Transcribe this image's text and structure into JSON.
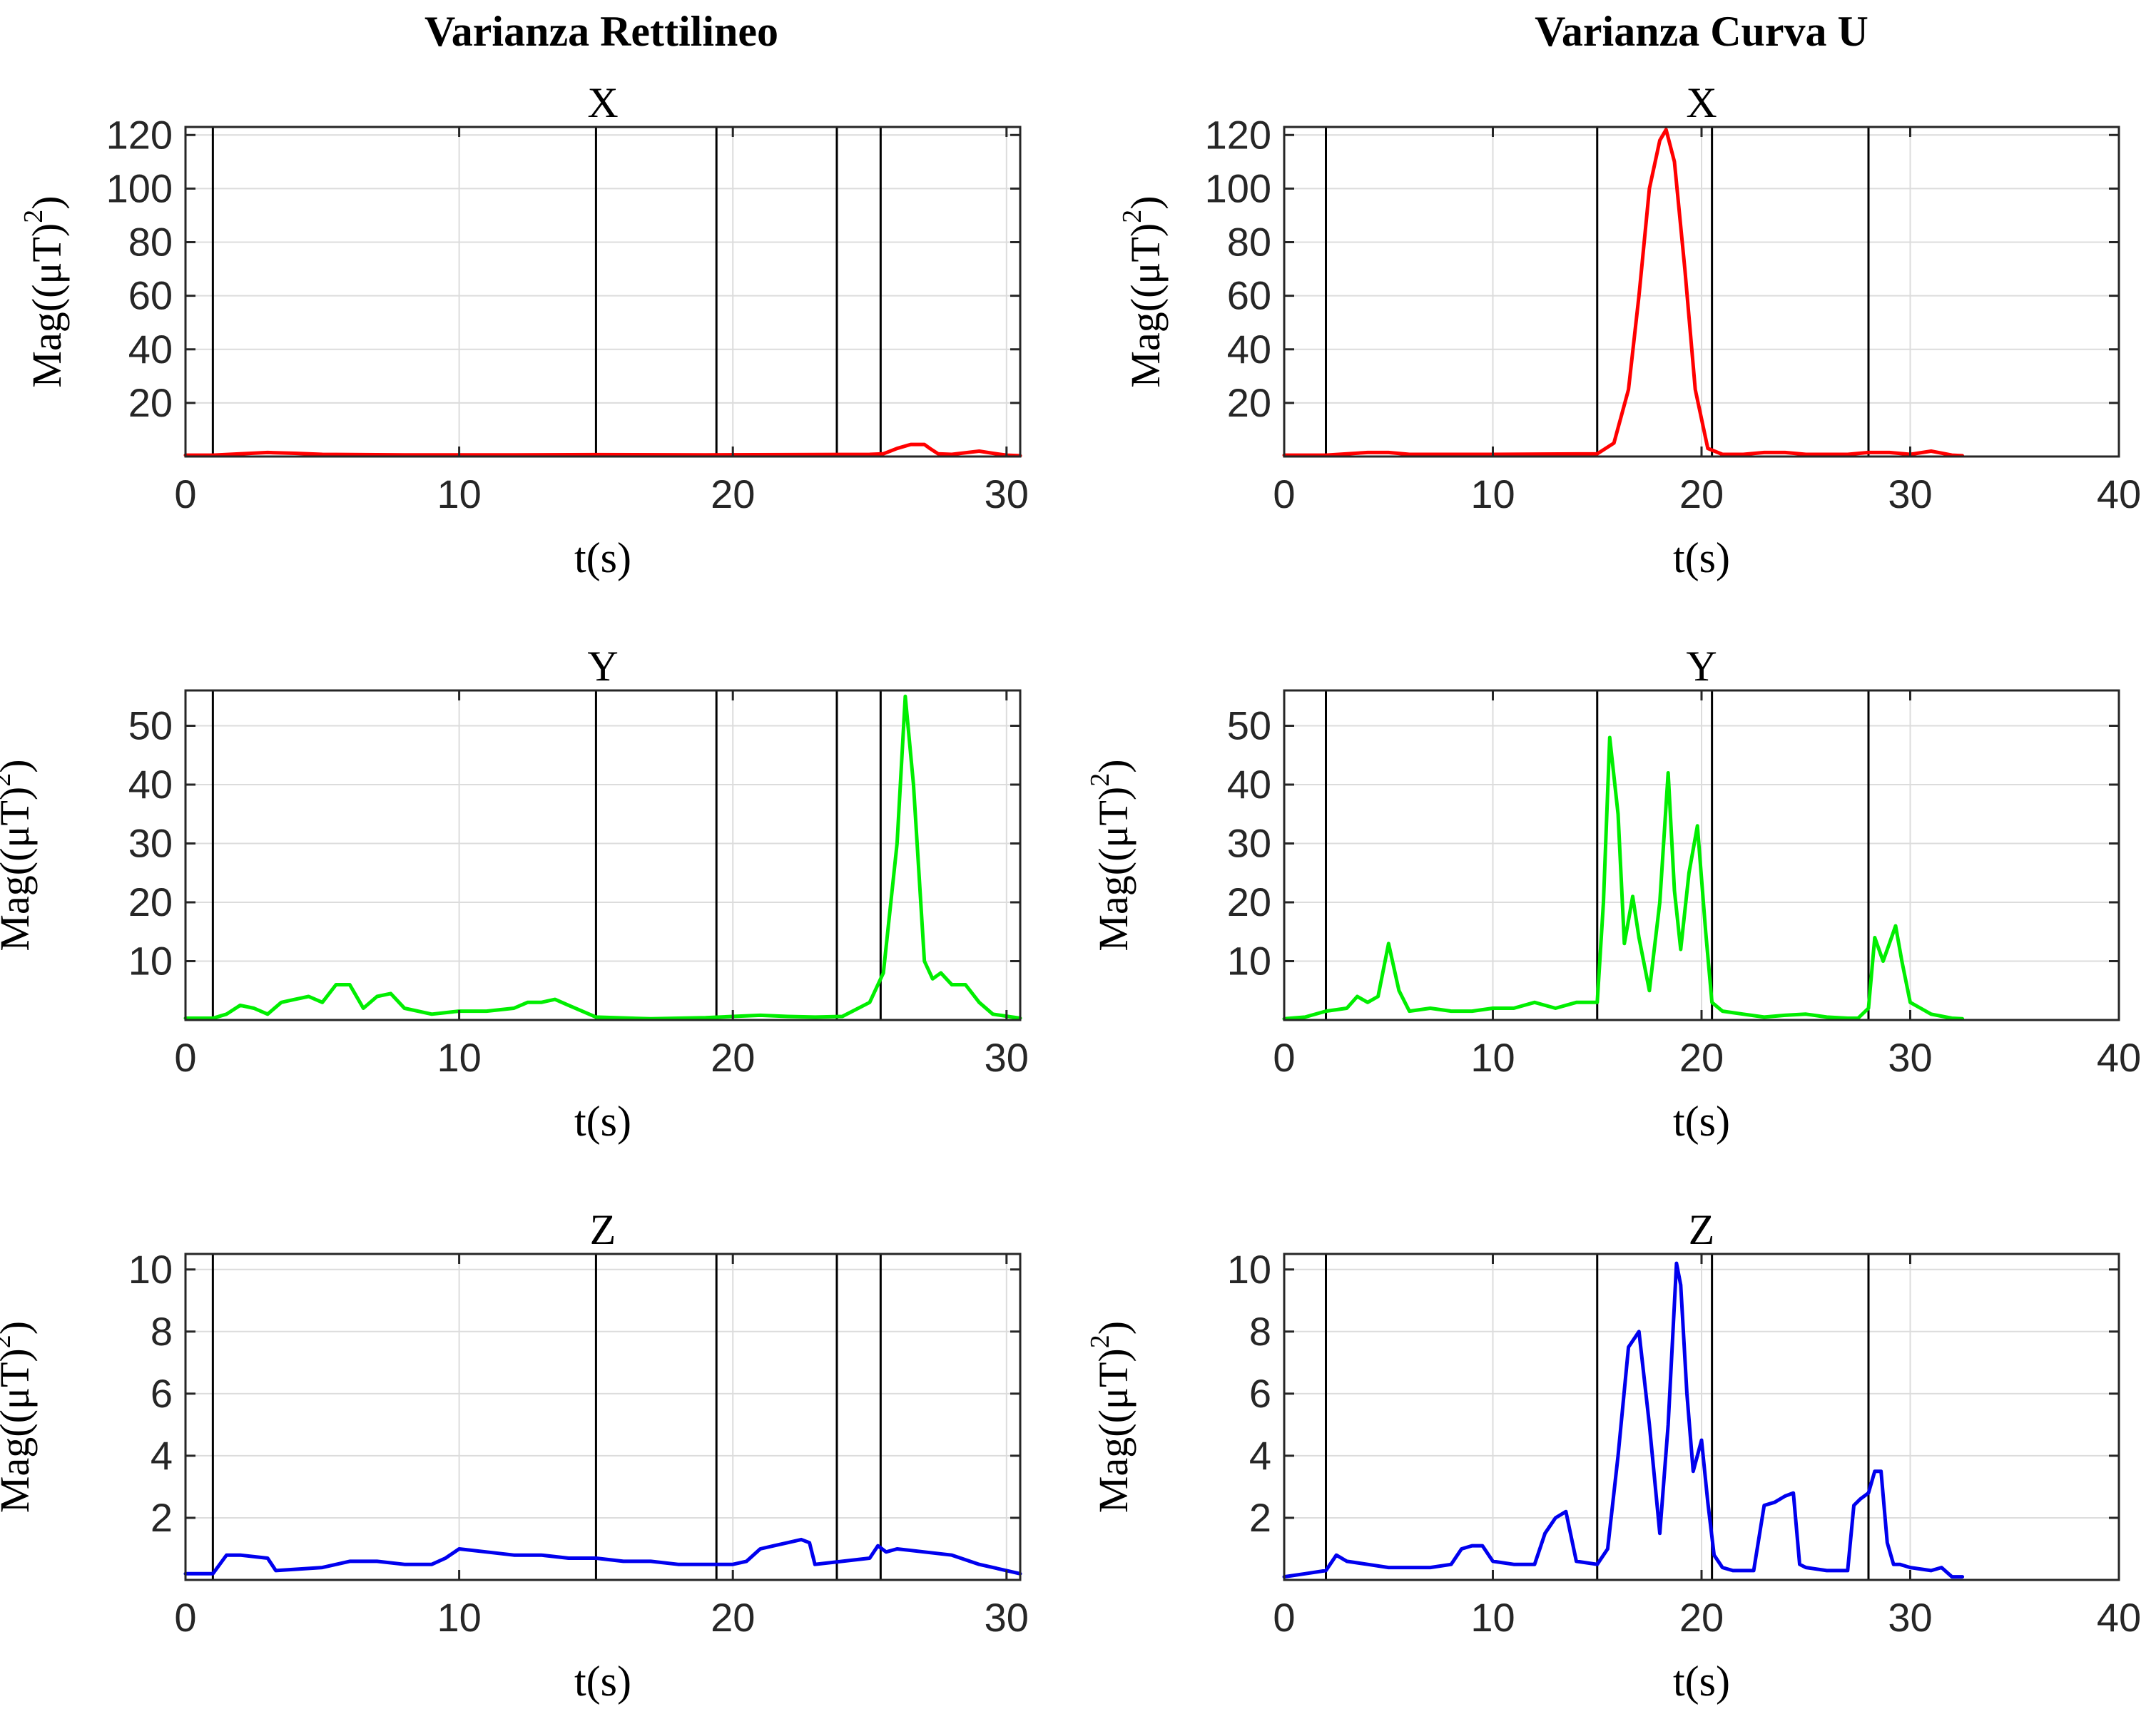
{
  "figure": {
    "column_titles": [
      "Varianza Rettilineo",
      "Varianza Curva U"
    ]
  },
  "chart_data": [
    {
      "type": "line",
      "column": "Varianza Rettilineo",
      "title": "X",
      "xlabel": "t(s)",
      "ylabel": "Mag((μT)",
      "ylabel_superscript": "2",
      "ylabel_suffix": ")",
      "xlim": [
        0,
        30.5
      ],
      "ylim": [
        0,
        123
      ],
      "xticks": [
        0,
        10,
        20,
        30
      ],
      "yticks": [
        20,
        40,
        60,
        80,
        100,
        120
      ],
      "grid": true,
      "event_lines": [
        1,
        15,
        19.4,
        23.8,
        25.4
      ],
      "series": [
        {
          "color": "#ff0000",
          "x": [
            0,
            1,
            2,
            3,
            4,
            5,
            8,
            12,
            15,
            19,
            22,
            25,
            25.5,
            26,
            26.5,
            27,
            27.2,
            27.5,
            28,
            29,
            29.5,
            30,
            30.5
          ],
          "y": [
            0.5,
            0.5,
            1,
            1.5,
            1.2,
            0.8,
            0.6,
            0.6,
            0.7,
            0.6,
            0.7,
            0.8,
            1,
            3,
            4.5,
            4.5,
            3,
            1,
            0.8,
            2,
            1.2,
            0.5,
            0.3
          ]
        }
      ]
    },
    {
      "type": "line",
      "column": "Varianza Curva U",
      "title": "X",
      "xlabel": "t(s)",
      "ylabel": "Mag((μT)",
      "ylabel_superscript": "2",
      "ylabel_suffix": ")",
      "xlim": [
        0,
        40
      ],
      "ylim": [
        0,
        123
      ],
      "xticks": [
        0,
        10,
        20,
        30,
        40
      ],
      "yticks": [
        20,
        40,
        60,
        80,
        100,
        120
      ],
      "grid": true,
      "event_lines": [
        2,
        15,
        20.5,
        28
      ],
      "series": [
        {
          "color": "#ff0000",
          "x": [
            0,
            2,
            4,
            5,
            6,
            10,
            15,
            15.8,
            16.5,
            17,
            17.5,
            18,
            18.3,
            18.7,
            19.2,
            19.7,
            20.3,
            21,
            22,
            23,
            24,
            25,
            27,
            28,
            29,
            30,
            31,
            32,
            32.5
          ],
          "y": [
            0.5,
            0.5,
            1.5,
            1.5,
            0.8,
            0.8,
            1,
            5,
            25,
            60,
            100,
            118,
            122,
            110,
            70,
            25,
            3,
            0.8,
            0.8,
            1.5,
            1.5,
            0.8,
            0.8,
            1.5,
            1.5,
            0.8,
            2,
            0.5,
            0.3
          ]
        }
      ]
    },
    {
      "type": "line",
      "column": "Varianza Rettilineo",
      "title": "Y",
      "xlabel": "t(s)",
      "ylabel": "Mag((μT)",
      "ylabel_superscript": "2",
      "ylabel_suffix": ")",
      "xlim": [
        0,
        30.5
      ],
      "ylim": [
        0,
        56
      ],
      "xticks": [
        0,
        10,
        20,
        30
      ],
      "yticks": [
        10,
        20,
        30,
        40,
        50
      ],
      "grid": true,
      "event_lines": [
        1,
        15,
        19.4,
        23.8,
        25.4
      ],
      "series": [
        {
          "color": "#00ee00",
          "x": [
            0,
            1,
            1.5,
            2,
            2.5,
            3,
            3.5,
            4,
            4.5,
            5,
            5.5,
            6,
            6.5,
            7,
            7.5,
            8,
            9,
            10,
            11,
            12,
            12.5,
            13,
            13.5,
            14,
            15,
            17,
            19,
            20,
            21,
            22,
            23,
            24,
            25,
            25.5,
            26,
            26.3,
            26.6,
            27,
            27.3,
            27.6,
            28,
            28.5,
            29,
            29.5,
            30.5
          ],
          "y": [
            0.3,
            0.3,
            1,
            2.5,
            2,
            1,
            3,
            3.5,
            4,
            3,
            6,
            6,
            2,
            4,
            4.5,
            2,
            1,
            1.5,
            1.5,
            2,
            3,
            3,
            3.5,
            2.5,
            0.5,
            0.2,
            0.4,
            0.6,
            0.8,
            0.6,
            0.5,
            0.6,
            3,
            8,
            30,
            55,
            40,
            10,
            7,
            8,
            6,
            6,
            3,
            1,
            0.3
          ]
        }
      ]
    },
    {
      "type": "line",
      "column": "Varianza Curva U",
      "title": "Y",
      "xlabel": "t(s)",
      "ylabel": "Mag((μT)",
      "ylabel_superscript": "2",
      "ylabel_suffix": ")",
      "xlim": [
        0,
        40
      ],
      "ylim": [
        0,
        56
      ],
      "xticks": [
        0,
        10,
        20,
        30,
        40
      ],
      "yticks": [
        10,
        20,
        30,
        40,
        50
      ],
      "grid": true,
      "event_lines": [
        2,
        15,
        20.5,
        28
      ],
      "series": [
        {
          "color": "#00ee00",
          "x": [
            0,
            1,
            2,
            3,
            3.5,
            4,
            4.5,
            5,
            5.5,
            6,
            7,
            8,
            9,
            10,
            11,
            12,
            13,
            14,
            15,
            15.3,
            15.6,
            16,
            16.3,
            16.7,
            17,
            17.5,
            18,
            18.4,
            18.7,
            19,
            19.4,
            19.8,
            20.2,
            20.5,
            21,
            22,
            23,
            24,
            25,
            26,
            27,
            27.5,
            28,
            28.3,
            28.7,
            29,
            29.3,
            29.6,
            30,
            30.5,
            31,
            32,
            32.5
          ],
          "y": [
            0.2,
            0.5,
            1.5,
            2,
            4,
            3,
            4,
            13,
            5,
            1.5,
            2,
            1.5,
            1.5,
            2,
            2,
            3,
            2,
            3,
            3,
            20,
            48,
            35,
            13,
            21,
            14,
            5,
            20,
            42,
            22,
            12,
            25,
            33,
            15,
            3,
            1.5,
            1,
            0.5,
            0.8,
            1,
            0.5,
            0.3,
            0.3,
            2,
            14,
            10,
            13,
            16,
            10,
            3,
            2,
            1,
            0.3,
            0.2
          ]
        }
      ]
    },
    {
      "type": "line",
      "column": "Varianza Rettilineo",
      "title": "Z",
      "xlabel": "t(s)",
      "ylabel": "Mag((μT)",
      "ylabel_superscript": "2",
      "ylabel_suffix": ")",
      "xlim": [
        0,
        30.5
      ],
      "ylim": [
        0,
        10.5
      ],
      "xticks": [
        0,
        10,
        20,
        30
      ],
      "yticks": [
        2,
        4,
        6,
        8,
        10
      ],
      "grid": true,
      "event_lines": [
        1,
        15,
        19.4,
        23.8,
        25.4
      ],
      "series": [
        {
          "color": "#0000ee",
          "x": [
            0,
            1,
            1.5,
            2,
            3,
            3.3,
            5,
            6,
            7,
            8,
            9,
            9.5,
            10,
            11,
            12,
            13,
            14,
            15,
            16,
            17,
            18,
            19,
            20,
            20.5,
            21,
            21.5,
            22,
            22.5,
            22.8,
            23,
            24,
            25,
            25.3,
            25.6,
            26,
            27,
            28,
            29,
            30,
            30.5
          ],
          "y": [
            0.2,
            0.2,
            0.8,
            0.8,
            0.7,
            0.3,
            0.4,
            0.6,
            0.6,
            0.5,
            0.5,
            0.7,
            1,
            0.9,
            0.8,
            0.8,
            0.7,
            0.7,
            0.6,
            0.6,
            0.5,
            0.5,
            0.5,
            0.6,
            1,
            1.1,
            1.2,
            1.3,
            1.2,
            0.5,
            0.6,
            0.7,
            1.1,
            0.9,
            1,
            0.9,
            0.8,
            0.5,
            0.3,
            0.2
          ]
        }
      ]
    },
    {
      "type": "line",
      "column": "Varianza Curva U",
      "title": "Z",
      "xlabel": "t(s)",
      "ylabel": "Mag((μT)",
      "ylabel_superscript": "2",
      "ylabel_suffix": ")",
      "xlim": [
        0,
        40
      ],
      "ylim": [
        0,
        10.5
      ],
      "xticks": [
        0,
        10,
        20,
        30,
        40
      ],
      "yticks": [
        2,
        4,
        6,
        8,
        10
      ],
      "grid": true,
      "event_lines": [
        2,
        15,
        20.5,
        28
      ],
      "series": [
        {
          "color": "#0000ee",
          "x": [
            0,
            1,
            2,
            2.5,
            3,
            4,
            5,
            6,
            7,
            8,
            8.5,
            9,
            9.5,
            10,
            11,
            12,
            12.5,
            13,
            13.5,
            14,
            15,
            15.5,
            16,
            16.5,
            17,
            17.5,
            18,
            18.4,
            18.8,
            19,
            19.3,
            19.6,
            20,
            20.3,
            20.6,
            21,
            21.5,
            22,
            22.5,
            23,
            23.5,
            24,
            24.4,
            24.7,
            25,
            26,
            27,
            27.3,
            27.6,
            28,
            28.3,
            28.6,
            28.9,
            29.2,
            29.5,
            30,
            31,
            31.5,
            32,
            32.5
          ],
          "y": [
            0.1,
            0.2,
            0.3,
            0.8,
            0.6,
            0.5,
            0.4,
            0.4,
            0.4,
            0.5,
            1,
            1.1,
            1.1,
            0.6,
            0.5,
            0.5,
            1.5,
            2,
            2.2,
            0.6,
            0.5,
            1,
            4,
            7.5,
            8,
            5,
            1.5,
            5,
            10.2,
            9.5,
            6,
            3.5,
            4.5,
            2.5,
            0.8,
            0.4,
            0.3,
            0.3,
            0.3,
            2.4,
            2.5,
            2.7,
            2.8,
            0.5,
            0.4,
            0.3,
            0.3,
            2.4,
            2.6,
            2.8,
            3.5,
            3.5,
            1.2,
            0.5,
            0.5,
            0.4,
            0.3,
            0.4,
            0.1,
            0.1
          ]
        }
      ]
    }
  ]
}
